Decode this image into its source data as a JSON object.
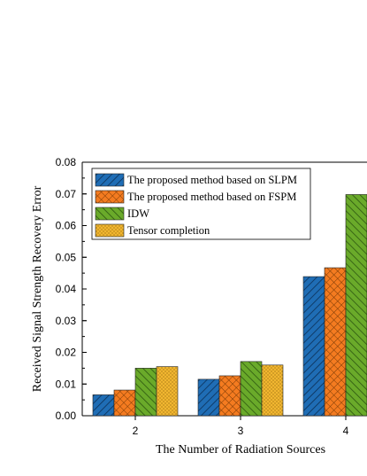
{
  "chart_data": {
    "type": "bar",
    "categories": [
      "2",
      "3",
      "4"
    ],
    "series": [
      {
        "name": "The proposed method based on SLPM",
        "values": [
          0.0066,
          0.0115,
          0.0439
        ],
        "color": "#1f6db5",
        "pattern": "diag-right"
      },
      {
        "name": "The proposed method based on FSPM",
        "values": [
          0.0081,
          0.0126,
          0.0467
        ],
        "color": "#f47b20",
        "pattern": "crosshatch"
      },
      {
        "name": "IDW",
        "values": [
          0.015,
          0.0171,
          0.0698
        ],
        "color": "#6aaa2a",
        "pattern": "diag-left"
      },
      {
        "name": "Tensor completion",
        "values": [
          0.0155,
          0.016,
          null
        ],
        "color": "#f1b630",
        "pattern": "dots"
      }
    ],
    "xlabel": "The Number of Radiation Sources",
    "ylabel": "Received Signal Strength Recovery Error",
    "ylim": [
      0,
      0.08
    ],
    "yticks": [
      "0.00",
      "0.01",
      "0.02",
      "0.03",
      "0.04",
      "0.05",
      "0.06",
      "0.07",
      "0.08"
    ],
    "legend_position": "top-left",
    "grid": false
  }
}
